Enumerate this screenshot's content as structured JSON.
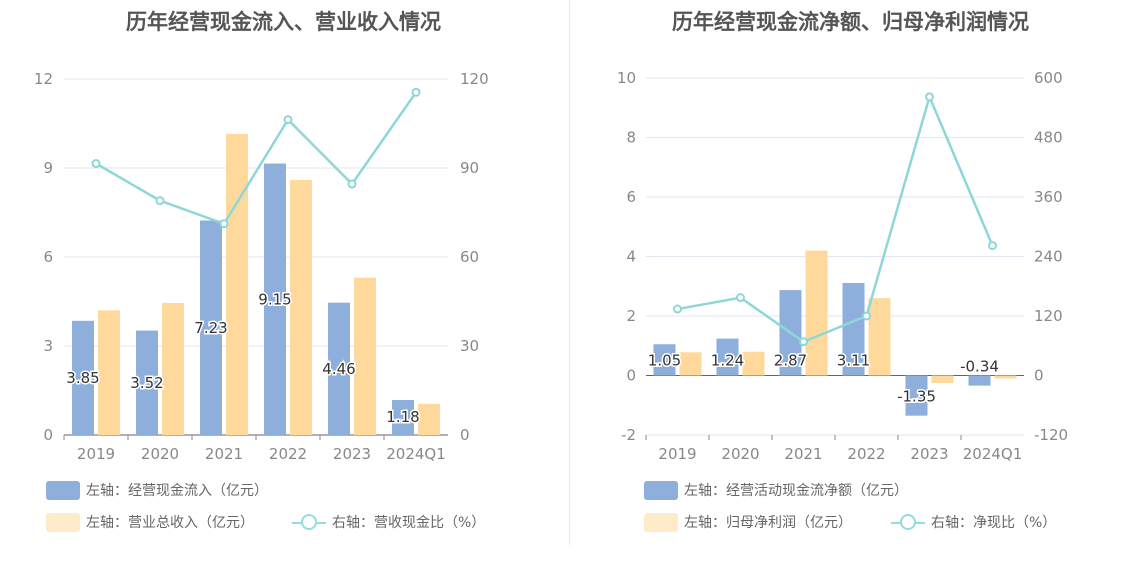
{
  "colors": {
    "bar1": "#8eaedc",
    "bar2": "#ffd99b",
    "line": "#8fd6d9",
    "grid": "#e3e6ef",
    "axis": "#888888"
  },
  "chart_data": [
    {
      "type": "bar",
      "title": "历年经营现金流入、营业收入情况",
      "categories": [
        "2019",
        "2020",
        "2021",
        "2022",
        "2023",
        "2024Q1"
      ],
      "left_axis": {
        "ticks": [
          "0",
          "3",
          "6",
          "9",
          "12"
        ],
        "ylim": [
          0,
          12
        ]
      },
      "right_axis": {
        "ticks": [
          "0",
          "30",
          "60",
          "90",
          "120"
        ],
        "ylim": [
          0,
          120
        ]
      },
      "series": [
        {
          "name": "左轴：经营现金流入（亿元）",
          "axis": "left",
          "kind": "bar",
          "values": [
            3.85,
            3.52,
            7.23,
            9.15,
            4.46,
            1.18
          ],
          "labels": [
            "3.85",
            "3.52",
            "7.23",
            "9.15",
            "4.46",
            "1.18"
          ]
        },
        {
          "name": "左轴：营业总收入（亿元）",
          "axis": "left",
          "kind": "bar",
          "values": [
            4.2,
            4.45,
            10.15,
            8.6,
            5.3,
            1.05
          ]
        },
        {
          "name": "右轴：营收现金比（%）",
          "axis": "right",
          "kind": "line",
          "values": [
            91.5,
            79.0,
            71.2,
            106.3,
            84.6,
            115.5
          ]
        }
      ],
      "grid": true
    },
    {
      "type": "bar",
      "title": "历年经营现金流净额、归母净利润情况",
      "categories": [
        "2019",
        "2020",
        "2021",
        "2022",
        "2023",
        "2024Q1"
      ],
      "left_axis": {
        "ticks": [
          "-2",
          "0",
          "2",
          "4",
          "6",
          "8",
          "10"
        ],
        "ylim": [
          -2,
          10
        ]
      },
      "right_axis": {
        "ticks": [
          "-120",
          "0",
          "120",
          "240",
          "360",
          "480",
          "600"
        ],
        "ylim": [
          -120,
          600
        ]
      },
      "series": [
        {
          "name": "左轴：经营活动现金流净额（亿元）",
          "axis": "left",
          "kind": "bar",
          "values": [
            1.05,
            1.24,
            2.87,
            3.11,
            -1.35,
            -0.34
          ],
          "labels": [
            "1.05",
            "1.24",
            "2.87",
            "3.11",
            "-1.35",
            "-0.34"
          ]
        },
        {
          "name": "左轴：归母净利润（亿元）",
          "axis": "left",
          "kind": "bar",
          "values": [
            0.78,
            0.8,
            4.2,
            2.6,
            -0.25,
            -0.1
          ]
        },
        {
          "name": "右轴：净现比（%）",
          "axis": "right",
          "kind": "line",
          "values": [
            134,
            157,
            68,
            120,
            562,
            262
          ]
        }
      ],
      "grid": true
    }
  ]
}
